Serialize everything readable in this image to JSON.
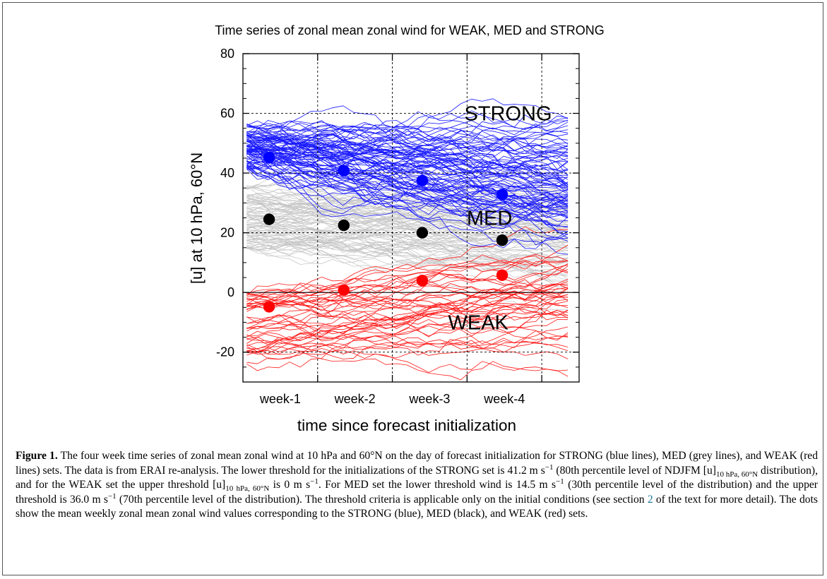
{
  "chart_data": {
    "type": "line",
    "title": "Time series of zonal mean zonal wind for WEAK, MED and STRONG",
    "xlabel": "time since forecast initialization",
    "ylabel": "[u] at 10 hPa, 60°N",
    "ylim": [
      -30,
      80
    ],
    "yticks": [
      -20,
      0,
      20,
      40,
      60,
      80
    ],
    "ytick_labels": [
      "-20",
      "0",
      "20",
      "40",
      "60",
      "80"
    ],
    "xlim": [
      0,
      4.5
    ],
    "week_labels": [
      "week-1",
      "week-2",
      "week-3",
      "week-4"
    ],
    "grid": true,
    "series": [
      {
        "name": "STRONG",
        "color": "#0000ff",
        "weekly_mean": [
          45.2,
          40.8,
          37.5,
          32.8
        ],
        "label_value": 60
      },
      {
        "name": "MED",
        "color": "#000000",
        "line_color": "#c0c0c0",
        "weekly_mean": [
          24.5,
          22.5,
          20.0,
          17.5
        ],
        "label_value": 25
      },
      {
        "name": "WEAK",
        "color": "#ff0000",
        "weekly_mean": [
          -4.8,
          0.8,
          4.0,
          5.8
        ],
        "label_value": -10
      }
    ]
  },
  "caption": {
    "label": "Figure 1.",
    "parts": [
      {
        "t": " The four week time series of zonal mean zonal wind at 10 hPa and 60°N on the day of forecast initialization for STRONG (blue lines), MED (grey lines), and WEAK (red lines) sets. The data is from ERAI re-analysis. The lower threshold for the initializations of the STRONG set is 41.2 m s"
      },
      {
        "sup": "−1"
      },
      {
        "t": " (80th percentile level of NDJFM [u]"
      },
      {
        "sub": "10 hPa, 60°N"
      },
      {
        "t": " distribution), and for the WEAK set the upper threshold [u]"
      },
      {
        "sub": "10 hPa, 60°N"
      },
      {
        "t": " is 0 m s"
      },
      {
        "sup": "−1"
      },
      {
        "t": ". For MED set the lower threshold wind is 14.5 m s"
      },
      {
        "sup": "−1"
      },
      {
        "t": " (30th percentile level of the distribution) and the upper threshold is 36.0 m s"
      },
      {
        "sup": "−1"
      },
      {
        "t": " (70th percentile level of the distribution). The threshold criteria is applicable only on the initial conditions (see section "
      },
      {
        "link": "2"
      },
      {
        "t": " of the text for more detail). The dots show the mean weekly zonal mean zonal wind values corresponding to the STRONG (blue), MED (black), and WEAK (red) sets."
      }
    ]
  }
}
